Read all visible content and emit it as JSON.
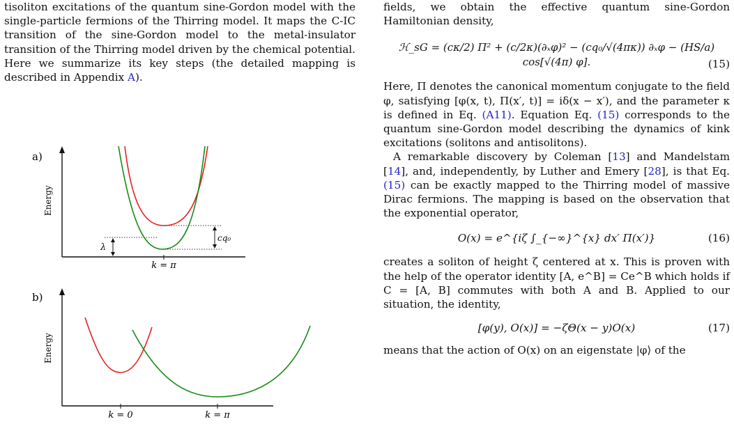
{
  "left": {
    "paragraph": "tisoliton excitations of the quantum sine-Gordon model with the single-particle fermions of the Thirring model. It maps the C-IC transition of the sine-Gordon model to the metal-insulator transition of the Thirring model driven by the chemical potential. Here we summarize its key steps (the detailed mapping is described in Appendix",
    "appendix_link": "A",
    "paragraph_end": ").",
    "figure_a": {
      "panel_label": "a)",
      "ylabel": "Energy",
      "xtick": "k = π",
      "gap_left": "λ",
      "gap_right": "cq₀",
      "colors": {
        "red": "#e8201f",
        "green": "#168a16"
      }
    },
    "figure_b": {
      "panel_label": "b)",
      "ylabel": "Energy",
      "xtick_left": "k = 0",
      "xtick_right": "k = π"
    }
  },
  "right": {
    "p1": "fields, we obtain the effective quantum sine-Gordon Hamiltonian density,",
    "eq15": "ℋ_sG = (cκ/2) Π² + (c/2κ)(∂ₓφ)² − (cq₀/√(4πκ)) ∂ₓφ − (HS/a) cos[√(4π) φ].",
    "eq15_num": "(15)",
    "p2a": "Here, Π denotes the canonical momentum conjugate to the field φ, satisfying [φ(x, t), Π(x′, t)] = iδ(x − x′), and the parameter κ is defined in Eq.",
    "p2_link1": "(A11)",
    "p2b": ". Equation Eq.",
    "p2_link2": "(15)",
    "p2c": "corresponds to the quantum sine-Gordon model describing the dynamics of kink excitations (solitons and antisolitons).",
    "p3a": "A remarkable discovery by Coleman [",
    "ref13": "13",
    "p3b": "] and Mandelstam [",
    "ref14": "14",
    "p3c": "], and, independently, by Luther and Emery [",
    "ref28": "28",
    "p3d": "], is that Eq.",
    "p3_link": "(15)",
    "p3e": "can be exactly mapped to the Thirring model of massive Dirac fermions. The mapping is based on the observation that the exponential operator,",
    "eq16": "O(x) = e^{iζ ∫_{−∞}^{x} dx′ Π(x′)}",
    "eq16_num": "(16)",
    "p4": "creates a soliton of height ζ centered at x. This is proven with the help of the operator identity [A, e^B] = Ce^B which holds if C = [A, B] commutes with both A and B. Applied to our situation, the identity,",
    "eq17": "[φ(y), O(x)] = −ζΘ(x − y)O(x)",
    "eq17_num": "(17)",
    "p5": "means that the action of O(x) on an eigenstate |φ⟩ of the"
  }
}
